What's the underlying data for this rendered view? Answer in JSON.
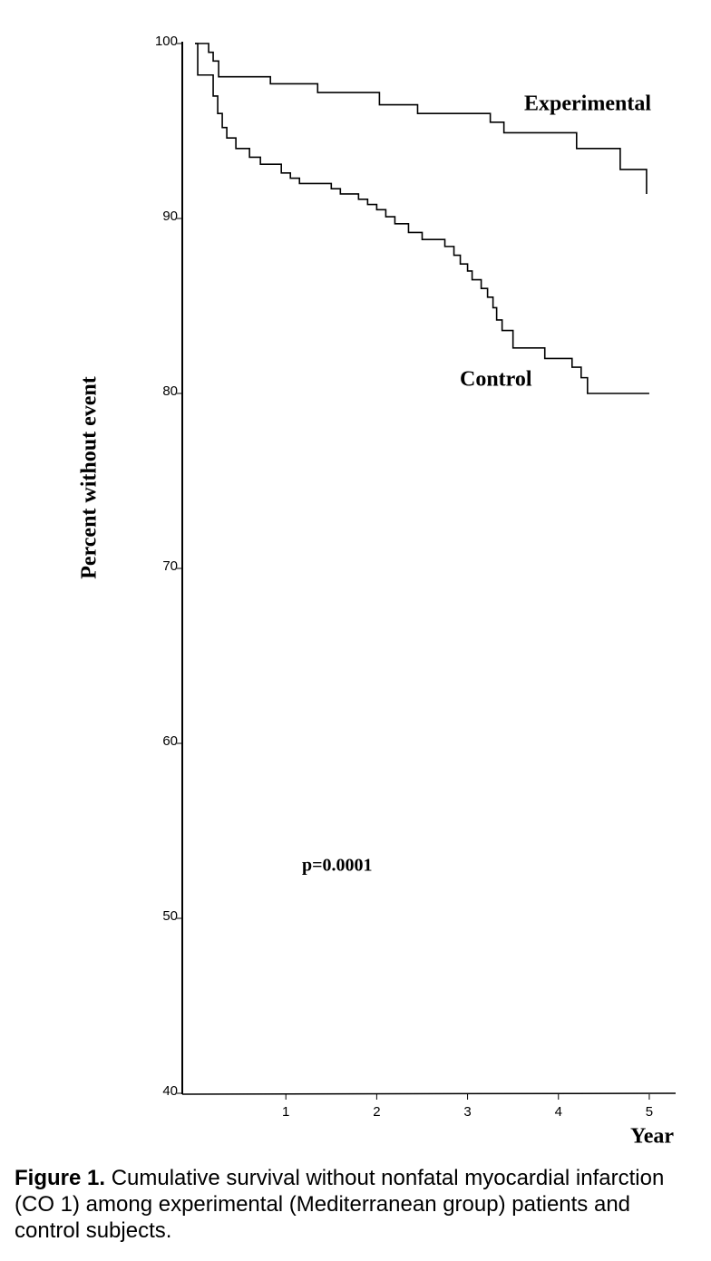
{
  "chart_data": {
    "type": "step-line",
    "y_label": "Percent without event",
    "x_label": "Year",
    "annotation": "p=0.0001",
    "xlim": [
      -0.12,
      5.29
    ],
    "xticks": [
      1,
      2,
      3,
      4,
      5
    ],
    "ylim": [
      40,
      100
    ],
    "yticks": [
      40,
      50,
      60,
      70,
      80,
      90,
      100
    ],
    "step": "post",
    "series": [
      {
        "name": "Experimental",
        "color": "#000000",
        "x": [
          0,
          0.15,
          0.2,
          0.26,
          0.83,
          1.35,
          2.03,
          2.45,
          3.25,
          3.4,
          4.2,
          4.68,
          4.97
        ],
        "values": [
          100,
          99.5,
          99,
          98.1,
          97.7,
          97.2,
          96.5,
          96,
          95.5,
          94.9,
          94,
          92.8,
          91.4
        ]
      },
      {
        "name": "Control",
        "color": "#000000",
        "x": [
          0,
          0.03,
          0.2,
          0.25,
          0.3,
          0.35,
          0.45,
          0.6,
          0.72,
          0.95,
          1.05,
          1.15,
          1.5,
          1.6,
          1.8,
          1.9,
          2.0,
          2.1,
          2.2,
          2.35,
          2.5,
          2.75,
          2.85,
          2.92,
          3.0,
          3.05,
          3.15,
          3.22,
          3.28,
          3.32,
          3.38,
          3.5,
          3.85,
          4.15,
          4.25,
          4.32,
          5.0
        ],
        "values": [
          100,
          98.2,
          97,
          96,
          95.2,
          94.6,
          94,
          93.5,
          93.1,
          92.6,
          92.3,
          92,
          91.7,
          91.4,
          91.1,
          90.8,
          90.5,
          90.1,
          89.7,
          89.2,
          88.8,
          88.4,
          87.9,
          87.4,
          87,
          86.5,
          86,
          85.5,
          84.9,
          84.2,
          83.6,
          82.6,
          82,
          81.5,
          80.9,
          80,
          80
        ]
      }
    ],
    "caption": {
      "label": "Figure 1.",
      "text": "Cumulative survival without nonfatal myocardial infarction (CO 1) among experimental (Mediterranean group) patients and control subjects."
    }
  }
}
